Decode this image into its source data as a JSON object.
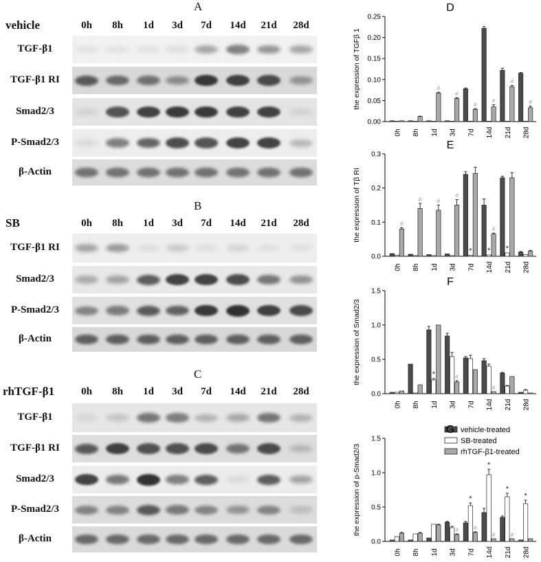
{
  "blots": [
    {
      "letter": "A",
      "condition": "vehicle",
      "timepoints": [
        "0h",
        "8h",
        "1d",
        "3d",
        "7d",
        "14d",
        "21d",
        "28d"
      ],
      "rows": [
        {
          "label": "TGF-β1",
          "bg": "#f1f1f1",
          "intensity": [
            0.02,
            0.03,
            0.03,
            0.05,
            0.35,
            0.55,
            0.45,
            0.35
          ]
        },
        {
          "label": "TGF-β1 RI",
          "bg": "#d9d9d9",
          "intensity": [
            0.75,
            0.65,
            0.6,
            0.45,
            0.95,
            0.9,
            0.85,
            0.4
          ]
        },
        {
          "label": "Smad2/3",
          "bg": "#e4e4e4",
          "intensity": [
            0.05,
            0.8,
            0.9,
            0.95,
            0.95,
            0.9,
            0.9,
            0.05
          ]
        },
        {
          "label": "P-Smad2/3",
          "bg": "#ededed",
          "intensity": [
            0.05,
            0.55,
            0.7,
            0.85,
            0.8,
            0.9,
            0.9,
            0.25
          ]
        },
        {
          "label": "β-Actin",
          "bg": "#dcdcdc",
          "intensity": [
            0.6,
            0.6,
            0.6,
            0.6,
            0.6,
            0.6,
            0.6,
            0.6
          ]
        }
      ]
    },
    {
      "letter": "B",
      "condition": "SB",
      "timepoints": [
        "0h",
        "8h",
        "1d",
        "3d",
        "7d",
        "14d",
        "21d",
        "28d"
      ],
      "rows": [
        {
          "label": "TGF-β1 RI",
          "bg": "#eeeeee",
          "intensity": [
            0.35,
            0.4,
            0.03,
            0.15,
            0.02,
            0.08,
            0.02,
            0.02
          ]
        },
        {
          "label": "Smad2/3",
          "bg": "#e8e8e8",
          "intensity": [
            0.3,
            0.35,
            0.75,
            0.9,
            0.9,
            0.85,
            0.6,
            0.45
          ]
        },
        {
          "label": "P-Smad2/3",
          "bg": "#e0e0e0",
          "intensity": [
            0.5,
            0.55,
            0.75,
            0.7,
            0.95,
            1.0,
            0.9,
            0.85
          ]
        },
        {
          "label": "β-Actin",
          "bg": "#d8d8d8",
          "intensity": [
            0.7,
            0.7,
            0.7,
            0.7,
            0.7,
            0.7,
            0.7,
            0.7
          ]
        }
      ]
    },
    {
      "letter": "C",
      "condition": "rhTGF-β1",
      "timepoints": [
        "0h",
        "8h",
        "1d",
        "3d",
        "7d",
        "14d",
        "21d",
        "28d"
      ],
      "rows": [
        {
          "label": "TGF-β1",
          "bg": "#e6e6e6",
          "intensity": [
            0.03,
            0.15,
            0.6,
            0.55,
            0.25,
            0.3,
            0.6,
            0.25
          ]
        },
        {
          "label": "TGF-β1 RI",
          "bg": "#dddddd",
          "intensity": [
            0.75,
            0.9,
            0.8,
            0.8,
            0.85,
            0.6,
            0.85,
            0.2
          ]
        },
        {
          "label": "Smad2/3",
          "bg": "#ececec",
          "intensity": [
            0.9,
            0.6,
            1.0,
            0.55,
            0.75,
            0.05,
            0.75,
            0.35
          ]
        },
        {
          "label": "P-Smad2/3",
          "bg": "#dcdcdc",
          "intensity": [
            0.5,
            0.5,
            0.75,
            0.55,
            0.5,
            0.4,
            0.5,
            0.15
          ]
        },
        {
          "label": "β-Actin",
          "bg": "#dadada",
          "intensity": [
            0.65,
            0.65,
            0.65,
            0.65,
            0.65,
            0.65,
            0.65,
            0.65
          ]
        }
      ]
    }
  ],
  "legend": {
    "entries": [
      {
        "name": "vehicle-treated",
        "color": "#4a4a4a"
      },
      {
        "name": "SB-treated",
        "color": "#ffffff"
      },
      {
        "name": "rhTGF-β1-treated",
        "color": "#a9a9a9"
      }
    ]
  },
  "chart_data": [
    {
      "letter": "D",
      "type": "bar",
      "ylabel": "the expression of TGFβ 1",
      "categories": [
        "0h",
        "8h",
        "1d",
        "3d",
        "7d",
        "14d",
        "21d",
        "28d"
      ],
      "ylim": [
        0,
        0.25
      ],
      "yticks": [
        "0.00",
        "0.05",
        "0.10",
        "0.15",
        "0.20",
        "0.25"
      ],
      "series": [
        {
          "values": [
            0.002,
            0.002,
            0.002,
            0.002,
            0.078,
            0.222,
            0.122,
            0.115
          ],
          "err": [
            0,
            0,
            0,
            0,
            0.002,
            0.004,
            0.005,
            0.002
          ],
          "marks": [
            "",
            "",
            "",
            "",
            "",
            "",
            "",
            ""
          ]
        },
        {
          "values": [
            0,
            0,
            0,
            0,
            0,
            0,
            0,
            0
          ],
          "err": [
            0,
            0,
            0,
            0,
            0,
            0,
            0,
            0
          ],
          "marks": [
            "",
            "",
            "",
            "",
            "",
            "",
            "",
            ""
          ]
        },
        {
          "values": [
            0.002,
            0.012,
            0.068,
            0.055,
            0.029,
            0.035,
            0.083,
            0.033
          ],
          "err": [
            0,
            0.001,
            0.002,
            0.002,
            0.002,
            0.005,
            0.003,
            0.004
          ],
          "marks": [
            "",
            "",
            "#",
            "#",
            "#",
            "#",
            "#",
            "#"
          ]
        }
      ]
    },
    {
      "letter": "E",
      "type": "bar",
      "ylabel": "the expression of Tβ RI",
      "categories": [
        "0h",
        "8h",
        "1d",
        "3d",
        "7d",
        "14d",
        "21d",
        "28d"
      ],
      "ylim": [
        0,
        0.3
      ],
      "yticks": [
        "0.0",
        "0.1",
        "0.2",
        "0.3"
      ],
      "series": [
        {
          "values": [
            0.008,
            0.006,
            0.005,
            0.007,
            0.24,
            0.15,
            0.23,
            0.012
          ],
          "err": [
            0,
            0,
            0,
            0,
            0.008,
            0.018,
            0.005,
            0.002
          ],
          "marks": [
            "",
            "",
            "",
            "",
            "",
            "",
            "",
            ""
          ]
        },
        {
          "values": [
            0.003,
            0.002,
            0.002,
            0.002,
            0.003,
            0.004,
            0.01,
            0.005
          ],
          "err": [
            0,
            0,
            0,
            0,
            0,
            0,
            0,
            0
          ],
          "marks": [
            "",
            "",
            "",
            "",
            "*",
            "*",
            "*",
            ""
          ]
        },
        {
          "values": [
            0.08,
            0.14,
            0.135,
            0.15,
            0.243,
            0.065,
            0.23,
            0.015
          ],
          "err": [
            0.004,
            0.015,
            0.015,
            0.016,
            0.018,
            0.003,
            0.015,
            0.002
          ],
          "marks": [
            "#",
            "#",
            "#",
            "#",
            "",
            "#",
            "",
            ""
          ]
        }
      ]
    },
    {
      "letter": "F",
      "type": "bar",
      "ylabel": "the expression of Smad2/3",
      "categories": [
        "0h",
        "8h",
        "1d",
        "3d",
        "7d",
        "14d",
        "21d",
        "28d"
      ],
      "ylim": [
        0,
        1.5
      ],
      "yticks": [
        "0.0",
        "0.5",
        "1.0",
        "1.5"
      ],
      "series": [
        {
          "values": [
            0.02,
            0.43,
            0.93,
            0.84,
            0.52,
            0.48,
            0.3,
            0.02
          ],
          "err": [
            0,
            0,
            0.05,
            0.04,
            0.02,
            0.03,
            0.01,
            0
          ],
          "marks": [
            "",
            "",
            "",
            "",
            "",
            "",
            "",
            ""
          ]
        },
        {
          "values": [
            0.02,
            0.01,
            0.2,
            0.54,
            0.51,
            0.4,
            0.11,
            0.05
          ],
          "err": [
            0,
            0,
            0.02,
            0.06,
            0.05,
            0.03,
            0.01,
            0.01
          ],
          "marks": [
            "",
            "",
            "*",
            "",
            "",
            "",
            "",
            ""
          ]
        },
        {
          "values": [
            0.04,
            0.13,
            1.0,
            0.17,
            0.35,
            0.03,
            0.25,
            0.01
          ],
          "err": [
            0,
            0,
            0,
            0.02,
            0,
            0,
            0,
            0
          ],
          "marks": [
            "",
            "",
            "",
            "#",
            "",
            "#",
            "",
            ""
          ]
        }
      ]
    },
    {
      "letter": "G",
      "type": "bar",
      "ylabel": "the expression of p-Smad2/3",
      "categories": [
        "0h",
        "8h",
        "1d",
        "3d",
        "7d",
        "14d",
        "21d",
        "28d"
      ],
      "ylim": [
        0,
        1.5
      ],
      "yticks": [
        "0.0",
        "0.5",
        "1.0",
        "1.5"
      ],
      "series": [
        {
          "values": [
            0.02,
            0.02,
            0.05,
            0.28,
            0.27,
            0.42,
            0.35,
            0.02
          ],
          "err": [
            0,
            0,
            0,
            0.01,
            0.02,
            0.06,
            0.02,
            0
          ],
          "marks": [
            "",
            "",
            "",
            "",
            "",
            "",
            "",
            ""
          ]
        },
        {
          "values": [
            0.07,
            0.11,
            0.25,
            0.2,
            0.52,
            0.97,
            0.65,
            0.55
          ],
          "err": [
            0,
            0,
            0,
            0.02,
            0.04,
            0.08,
            0.05,
            0.05
          ],
          "marks": [
            "",
            "",
            "",
            "",
            "*",
            "*",
            "*",
            "*"
          ]
        },
        {
          "values": [
            0.12,
            0.12,
            0.24,
            0.1,
            0.13,
            0.04,
            0.04,
            0.04
          ],
          "err": [
            0.01,
            0.01,
            0.01,
            0.01,
            0.01,
            0,
            0,
            0
          ],
          "marks": [
            "",
            "",
            "",
            "#",
            "#",
            "#",
            "#",
            ""
          ]
        }
      ]
    }
  ]
}
